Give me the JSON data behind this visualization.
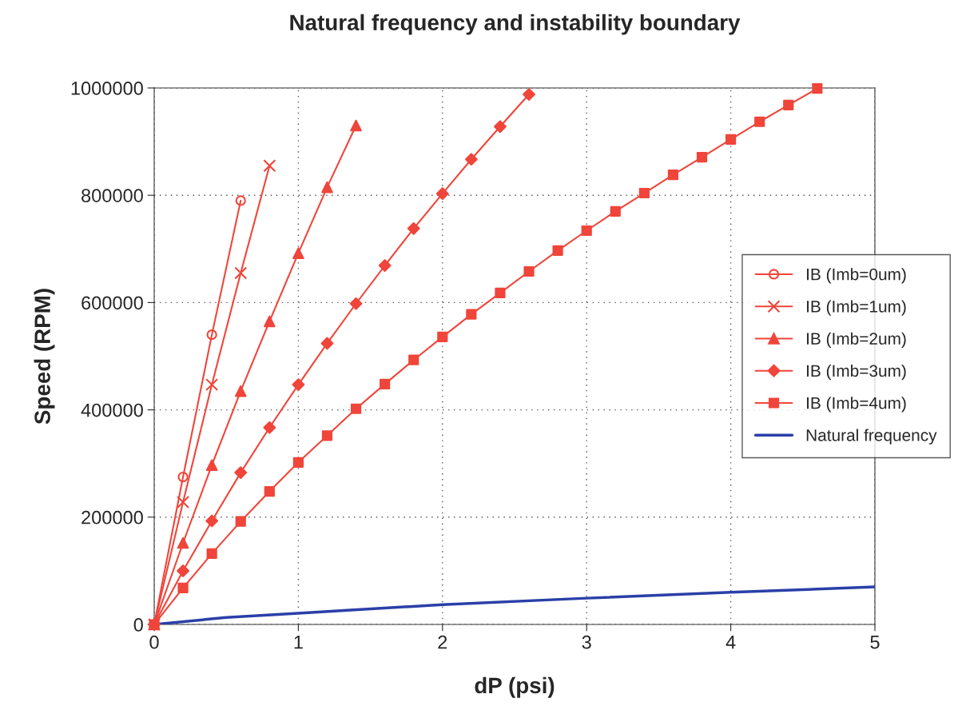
{
  "chart_data": {
    "type": "line",
    "title": "Natural frequency and instability boundary",
    "xlabel": "dP (psi)",
    "ylabel": "Speed (RPM)",
    "xlim": [
      0,
      5
    ],
    "xticks": [
      0,
      1,
      2,
      3,
      4,
      5
    ],
    "ylim": [
      0,
      1000000
    ],
    "yticks": [
      0,
      200000,
      400000,
      600000,
      800000,
      1000000
    ],
    "grid": true,
    "legend": "right",
    "series": [
      {
        "name": "IB (Imb=0um)",
        "color": "#f0453a",
        "marker": "circle",
        "x": [
          0,
          0.2,
          0.4,
          0.6
        ],
        "values": [
          0,
          275000,
          540000,
          790000
        ]
      },
      {
        "name": "IB (Imb=1um)",
        "color": "#f0453a",
        "marker": "cross",
        "x": [
          0,
          0.2,
          0.4,
          0.6,
          0.8
        ],
        "values": [
          0,
          228000,
          447000,
          655000,
          855000
        ]
      },
      {
        "name": "IB (Imb=2um)",
        "color": "#f0453a",
        "marker": "triangle",
        "x": [
          0,
          0.2,
          0.4,
          0.6,
          0.8,
          1.0,
          1.2,
          1.4
        ],
        "values": [
          0,
          152000,
          297000,
          435000,
          565000,
          692000,
          815000,
          930000
        ]
      },
      {
        "name": "IB (Imb=3um)",
        "color": "#f0453a",
        "marker": "diamond",
        "x": [
          0,
          0.2,
          0.4,
          0.6,
          0.8,
          1.0,
          1.2,
          1.4,
          1.6,
          1.8,
          2.0,
          2.2,
          2.4,
          2.6
        ],
        "values": [
          0,
          100000,
          193000,
          283000,
          367000,
          447000,
          524000,
          598000,
          669000,
          738000,
          803000,
          867000,
          928000,
          988000
        ]
      },
      {
        "name": "IB (Imb=4um)",
        "color": "#f0453a",
        "marker": "square",
        "x": [
          0,
          0.2,
          0.4,
          0.6,
          0.8,
          1.0,
          1.2,
          1.4,
          1.6,
          1.8,
          2.0,
          2.2,
          2.4,
          2.6,
          2.8,
          3.0,
          3.2,
          3.4,
          3.6,
          3.8,
          4.0,
          4.2,
          4.4,
          4.6
        ],
        "values": [
          0,
          68000,
          132000,
          192000,
          248000,
          302000,
          352000,
          402000,
          448000,
          493000,
          536000,
          578000,
          618000,
          658000,
          697000,
          734000,
          770000,
          804000,
          838000,
          871000,
          904000,
          937000,
          968000,
          999000
        ]
      },
      {
        "name": "Natural frequency",
        "color": "#2b3fa8",
        "marker": "none",
        "x": [
          0,
          0.5,
          1,
          2,
          3,
          4,
          5
        ],
        "values": [
          0,
          13000,
          21000,
          37000,
          49000,
          60000,
          70000
        ]
      }
    ]
  }
}
